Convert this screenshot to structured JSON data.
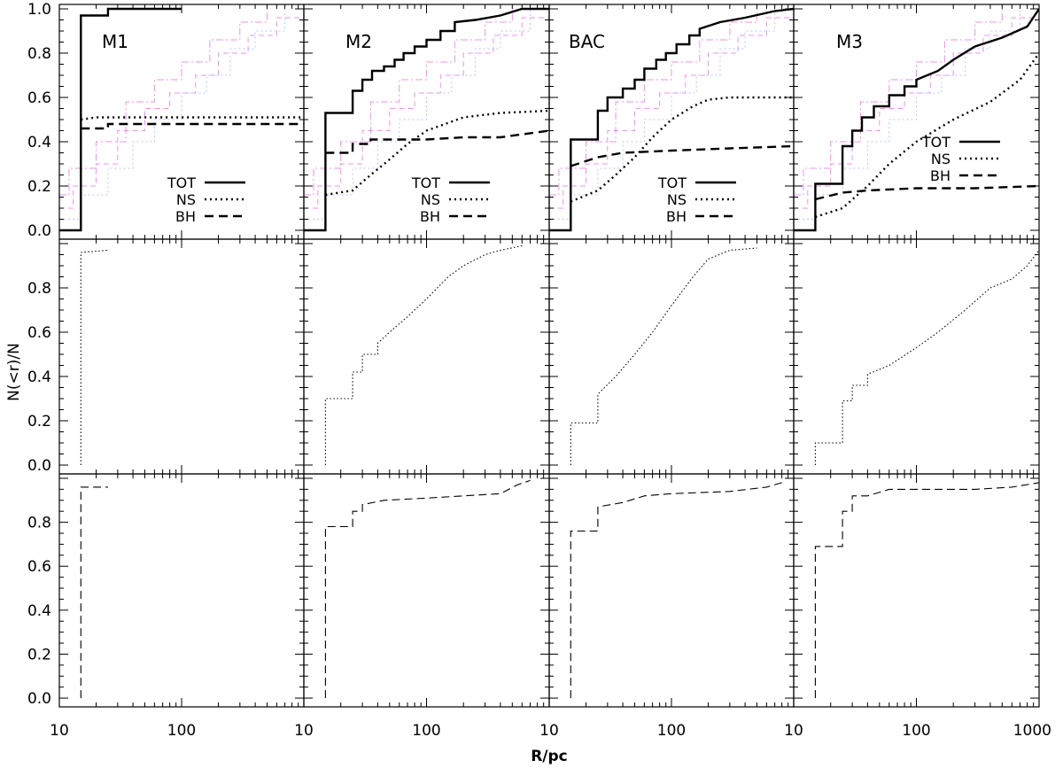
{
  "chart_data": {
    "type": "line",
    "ylabel": "N(<r)/N",
    "xlabel": "R/pc",
    "x_scale": "log",
    "xlim": [
      10,
      1000
    ],
    "x_tick_values": [
      10,
      100,
      1000
    ],
    "x_tick_labels": [
      "10",
      "100",
      "10",
      "100",
      "10",
      "100",
      "10",
      "100",
      "1000"
    ],
    "y_ticks_top_row": [
      "0.0",
      "0.2",
      "0.4",
      "0.6",
      "0.8",
      "1.0"
    ],
    "y_ticks_lower_rows": [
      "0.0",
      "0.2",
      "0.4",
      "0.6",
      "0.8"
    ],
    "legend": [
      "TOT",
      "NS",
      "BH"
    ],
    "colors": {
      "ink": "#000000",
      "reference_magenta": "#e070e0",
      "reference_blue": "#9ab4ff"
    },
    "panels": [
      {
        "label": "M1",
        "tot": [
          [
            10,
            0
          ],
          [
            15,
            0
          ],
          [
            15,
            0.97
          ],
          [
            25,
            0.97
          ],
          [
            25,
            1.0
          ],
          [
            100,
            1.0
          ]
        ],
        "ns": [
          [
            15,
            0.5
          ],
          [
            20,
            0.51
          ],
          [
            50,
            0.51
          ],
          [
            100,
            0.51
          ],
          [
            1000,
            0.51
          ]
        ],
        "bh": [
          [
            15,
            0.46
          ],
          [
            25,
            0.46
          ],
          [
            25,
            0.48
          ],
          [
            100,
            0.48
          ],
          [
            1000,
            0.48
          ]
        ],
        "ns_only": [
          [
            15,
            0
          ],
          [
            15,
            0.96
          ],
          [
            25,
            0.97
          ]
        ],
        "bh_only": [
          [
            15,
            0
          ],
          [
            15,
            0.96
          ],
          [
            25,
            0.96
          ]
        ]
      },
      {
        "label": "M2",
        "tot": [
          [
            10,
            0
          ],
          [
            15,
            0
          ],
          [
            15,
            0.53
          ],
          [
            25,
            0.53
          ],
          [
            25,
            0.63
          ],
          [
            30,
            0.63
          ],
          [
            30,
            0.68
          ],
          [
            36,
            0.68
          ],
          [
            36,
            0.72
          ],
          [
            45,
            0.72
          ],
          [
            45,
            0.74
          ],
          [
            55,
            0.74
          ],
          [
            55,
            0.77
          ],
          [
            65,
            0.77
          ],
          [
            65,
            0.8
          ],
          [
            80,
            0.8
          ],
          [
            80,
            0.83
          ],
          [
            100,
            0.83
          ],
          [
            100,
            0.86
          ],
          [
            130,
            0.86
          ],
          [
            130,
            0.9
          ],
          [
            170,
            0.9
          ],
          [
            170,
            0.94
          ],
          [
            250,
            0.95
          ],
          [
            400,
            0.97
          ],
          [
            600,
            1.0
          ],
          [
            1000,
            1.0
          ]
        ],
        "ns": [
          [
            15,
            0.16
          ],
          [
            25,
            0.18
          ],
          [
            35,
            0.25
          ],
          [
            50,
            0.32
          ],
          [
            70,
            0.39
          ],
          [
            100,
            0.45
          ],
          [
            200,
            0.51
          ],
          [
            400,
            0.53
          ],
          [
            1000,
            0.54
          ]
        ],
        "bh": [
          [
            15,
            0.35
          ],
          [
            25,
            0.35
          ],
          [
            25,
            0.39
          ],
          [
            35,
            0.39
          ],
          [
            35,
            0.41
          ],
          [
            100,
            0.41
          ],
          [
            200,
            0.42
          ],
          [
            400,
            0.42
          ],
          [
            1000,
            0.45
          ]
        ],
        "ns_only": [
          [
            15,
            0
          ],
          [
            15,
            0.3
          ],
          [
            25,
            0.3
          ],
          [
            25,
            0.42
          ],
          [
            30,
            0.42
          ],
          [
            30,
            0.5
          ],
          [
            40,
            0.5
          ],
          [
            40,
            0.55
          ],
          [
            50,
            0.6
          ],
          [
            70,
            0.67
          ],
          [
            100,
            0.75
          ],
          [
            150,
            0.85
          ],
          [
            200,
            0.9
          ],
          [
            300,
            0.95
          ],
          [
            400,
            0.97
          ],
          [
            600,
            0.99
          ]
        ],
        "bh_only": [
          [
            15,
            0
          ],
          [
            15,
            0.78
          ],
          [
            25,
            0.78
          ],
          [
            25,
            0.85
          ],
          [
            30,
            0.85
          ],
          [
            30,
            0.88
          ],
          [
            45,
            0.9
          ],
          [
            100,
            0.91
          ],
          [
            200,
            0.92
          ],
          [
            400,
            0.93
          ],
          [
            550,
            0.97
          ],
          [
            700,
            0.99
          ]
        ]
      },
      {
        "label": "BAC",
        "tot": [
          [
            10,
            0
          ],
          [
            15,
            0
          ],
          [
            15,
            0.41
          ],
          [
            25,
            0.41
          ],
          [
            25,
            0.54
          ],
          [
            30,
            0.54
          ],
          [
            30,
            0.6
          ],
          [
            40,
            0.6
          ],
          [
            40,
            0.64
          ],
          [
            50,
            0.64
          ],
          [
            50,
            0.68
          ],
          [
            60,
            0.68
          ],
          [
            60,
            0.73
          ],
          [
            75,
            0.73
          ],
          [
            75,
            0.77
          ],
          [
            90,
            0.77
          ],
          [
            90,
            0.8
          ],
          [
            110,
            0.8
          ],
          [
            110,
            0.84
          ],
          [
            140,
            0.84
          ],
          [
            140,
            0.88
          ],
          [
            170,
            0.88
          ],
          [
            170,
            0.91
          ],
          [
            250,
            0.94
          ],
          [
            400,
            0.96
          ],
          [
            700,
            0.99
          ],
          [
            1000,
            1.0
          ]
        ],
        "ns": [
          [
            15,
            0.13
          ],
          [
            25,
            0.18
          ],
          [
            35,
            0.25
          ],
          [
            50,
            0.33
          ],
          [
            70,
            0.42
          ],
          [
            100,
            0.5
          ],
          [
            150,
            0.56
          ],
          [
            200,
            0.59
          ],
          [
            300,
            0.6
          ],
          [
            1000,
            0.6
          ]
        ],
        "bh": [
          [
            15,
            0.29
          ],
          [
            25,
            0.33
          ],
          [
            40,
            0.35
          ],
          [
            100,
            0.36
          ],
          [
            300,
            0.37
          ],
          [
            1000,
            0.38
          ]
        ],
        "ns_only": [
          [
            15,
            0
          ],
          [
            15,
            0.19
          ],
          [
            25,
            0.19
          ],
          [
            25,
            0.32
          ],
          [
            35,
            0.4
          ],
          [
            50,
            0.5
          ],
          [
            70,
            0.6
          ],
          [
            100,
            0.72
          ],
          [
            150,
            0.85
          ],
          [
            200,
            0.93
          ],
          [
            300,
            0.97
          ],
          [
            500,
            0.98
          ]
        ],
        "bh_only": [
          [
            15,
            0
          ],
          [
            15,
            0.76
          ],
          [
            25,
            0.76
          ],
          [
            25,
            0.87
          ],
          [
            40,
            0.89
          ],
          [
            60,
            0.92
          ],
          [
            100,
            0.93
          ],
          [
            300,
            0.94
          ],
          [
            600,
            0.96
          ],
          [
            800,
            0.98
          ]
        ]
      },
      {
        "label": "M3",
        "tot": [
          [
            10,
            0
          ],
          [
            15,
            0
          ],
          [
            15,
            0.21
          ],
          [
            25,
            0.21
          ],
          [
            25,
            0.38
          ],
          [
            30,
            0.38
          ],
          [
            30,
            0.45
          ],
          [
            36,
            0.45
          ],
          [
            36,
            0.51
          ],
          [
            45,
            0.51
          ],
          [
            45,
            0.56
          ],
          [
            60,
            0.56
          ],
          [
            60,
            0.61
          ],
          [
            80,
            0.61
          ],
          [
            80,
            0.65
          ],
          [
            100,
            0.65
          ],
          [
            100,
            0.68
          ],
          [
            150,
            0.72
          ],
          [
            200,
            0.77
          ],
          [
            300,
            0.83
          ],
          [
            500,
            0.87
          ],
          [
            800,
            0.92
          ],
          [
            1000,
            1.0
          ]
        ],
        "ns": [
          [
            15,
            0.06
          ],
          [
            25,
            0.1
          ],
          [
            40,
            0.2
          ],
          [
            60,
            0.3
          ],
          [
            100,
            0.4
          ],
          [
            200,
            0.5
          ],
          [
            400,
            0.58
          ],
          [
            700,
            0.68
          ],
          [
            1000,
            0.8
          ]
        ],
        "bh": [
          [
            15,
            0.14
          ],
          [
            25,
            0.17
          ],
          [
            40,
            0.18
          ],
          [
            100,
            0.19
          ],
          [
            300,
            0.19
          ],
          [
            1000,
            0.2
          ]
        ],
        "ns_only": [
          [
            15,
            0
          ],
          [
            15,
            0.1
          ],
          [
            25,
            0.1
          ],
          [
            25,
            0.29
          ],
          [
            30,
            0.29
          ],
          [
            30,
            0.36
          ],
          [
            40,
            0.36
          ],
          [
            40,
            0.41
          ],
          [
            60,
            0.45
          ],
          [
            100,
            0.53
          ],
          [
            150,
            0.6
          ],
          [
            250,
            0.7
          ],
          [
            400,
            0.8
          ],
          [
            600,
            0.84
          ],
          [
            800,
            0.9
          ],
          [
            1000,
            0.97
          ]
        ],
        "bh_only": [
          [
            15,
            0
          ],
          [
            15,
            0.69
          ],
          [
            25,
            0.69
          ],
          [
            25,
            0.85
          ],
          [
            30,
            0.85
          ],
          [
            30,
            0.92
          ],
          [
            40,
            0.92
          ],
          [
            60,
            0.95
          ],
          [
            100,
            0.95
          ],
          [
            300,
            0.95
          ],
          [
            600,
            0.96
          ],
          [
            1000,
            0.98
          ]
        ]
      }
    ]
  }
}
